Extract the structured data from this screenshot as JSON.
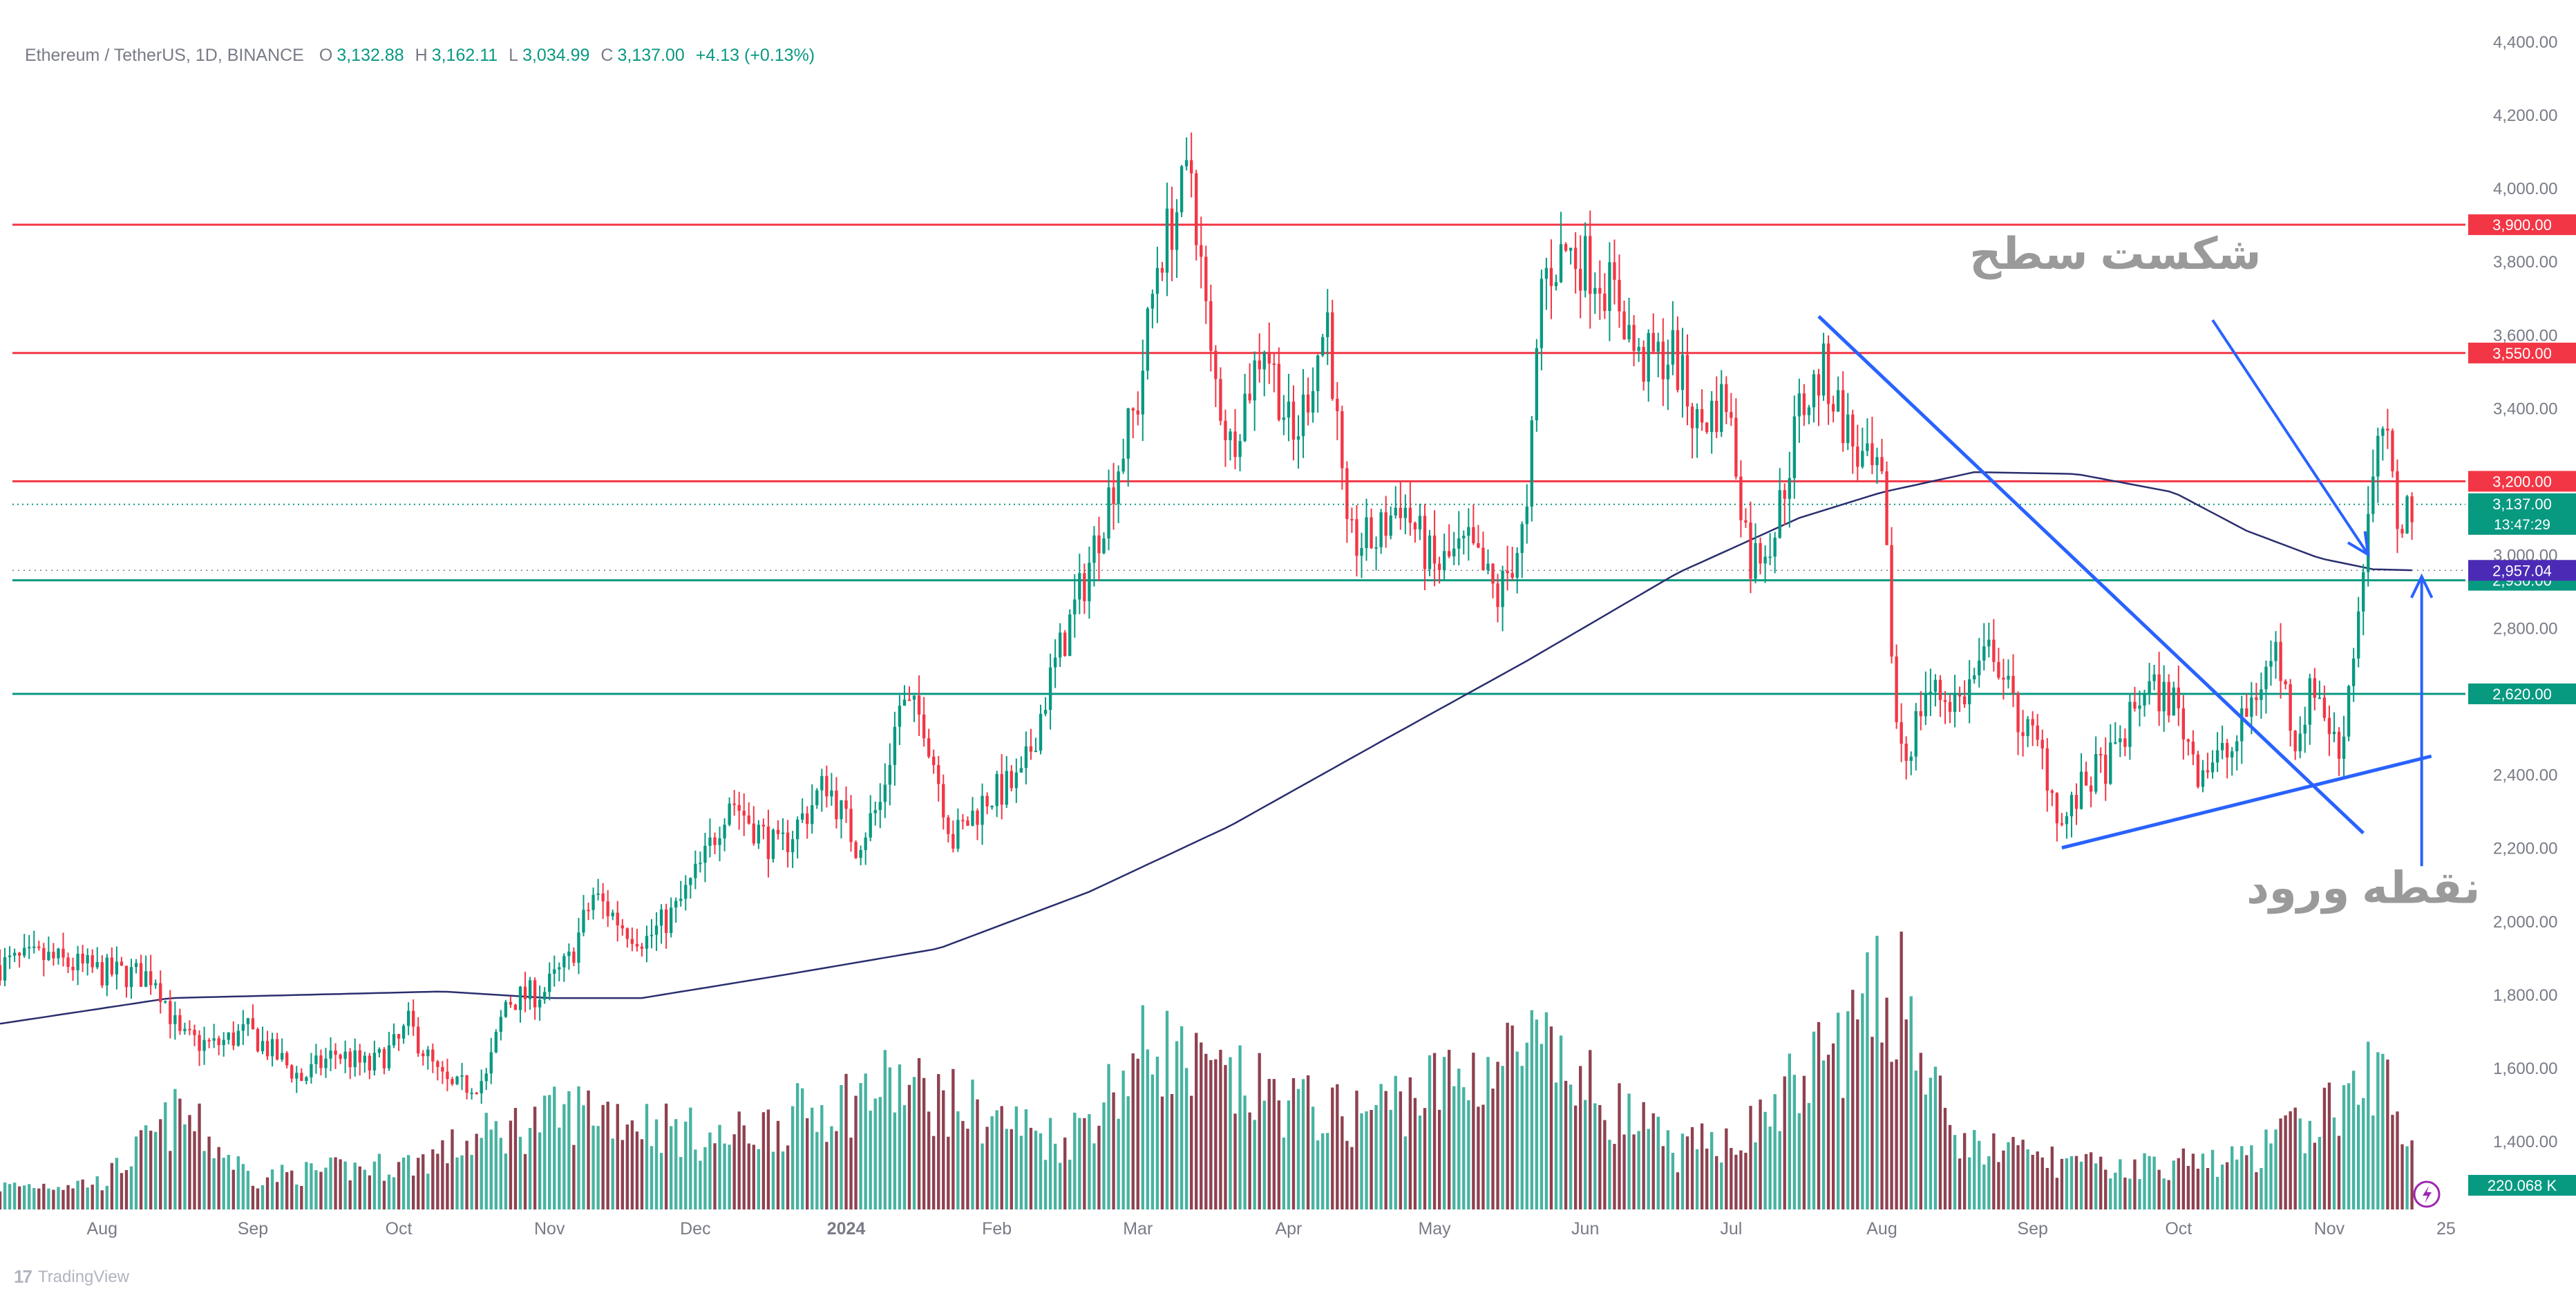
{
  "header": {
    "symbol": "Ethereum / TetherUS, 1D, BINANCE",
    "open_label": "O",
    "open": "3,132.88",
    "high_label": "H",
    "high": "3,162.11",
    "low_label": "L",
    "low": "3,034.99",
    "close_label": "C",
    "close": "3,137.00",
    "change": "+4.13 (+0.13%)"
  },
  "watermark": {
    "text": "TradingView",
    "icon": "tradingview-logo-icon"
  },
  "colors": {
    "up": "#089981",
    "down": "#f23645",
    "ma": "#2a2e6e",
    "trend": "#2962ff",
    "annotation": "#9a9a9a",
    "support": "#089981",
    "resistance": "#f23645",
    "ma_label": "#4b2bb5"
  },
  "chart_data": {
    "type": "candlestick",
    "y_ticks": [
      "4,400.00",
      "4,200.00",
      "4,000.00",
      "3,800.00",
      "3,600.00",
      "3,400.00",
      "3,000.00",
      "2,800.00",
      "2,400.00",
      "2,200.00",
      "2,000.00",
      "1,800.00",
      "1,600.00",
      "1,400.00"
    ],
    "ylim": [
      1300,
      4400
    ],
    "x_labels": [
      {
        "label": "Aug",
        "date": "2023-08-01"
      },
      {
        "label": "Sep",
        "date": "2023-09-01"
      },
      {
        "label": "Oct",
        "date": "2023-10-01"
      },
      {
        "label": "Nov",
        "date": "2023-11-01"
      },
      {
        "label": "Dec",
        "date": "2023-12-01"
      },
      {
        "label": "2024",
        "date": "2024-01-01"
      },
      {
        "label": "Feb",
        "date": "2024-02-01"
      },
      {
        "label": "Mar",
        "date": "2024-03-01"
      },
      {
        "label": "Apr",
        "date": "2024-04-01"
      },
      {
        "label": "May",
        "date": "2024-05-01"
      },
      {
        "label": "Jun",
        "date": "2024-06-01"
      },
      {
        "label": "Jul",
        "date": "2024-07-01"
      },
      {
        "label": "Aug",
        "date": "2024-08-01"
      },
      {
        "label": "Sep",
        "date": "2024-09-01"
      },
      {
        "label": "Oct",
        "date": "2024-10-01"
      },
      {
        "label": "Nov",
        "date": "2024-11-01"
      },
      {
        "label": "25",
        "date": "2024-11-25"
      }
    ],
    "xlim": [
      "2023-07-11",
      "2024-11-29"
    ],
    "price_path": [
      [
        "2023-07-11",
        1880
      ],
      [
        "2023-07-20",
        1900
      ],
      [
        "2023-08-01",
        1860
      ],
      [
        "2023-08-12",
        1850
      ],
      [
        "2023-08-17",
        1680
      ],
      [
        "2023-08-24",
        1660
      ],
      [
        "2023-08-31",
        1700
      ],
      [
        "2023-09-06",
        1630
      ],
      [
        "2023-09-11",
        1570
      ],
      [
        "2023-09-18",
        1640
      ],
      [
        "2023-09-25",
        1600
      ],
      [
        "2023-10-01",
        1670
      ],
      [
        "2023-10-03",
        1720
      ],
      [
        "2023-10-09",
        1580
      ],
      [
        "2023-10-12",
        1540
      ],
      [
        "2023-10-19",
        1570
      ],
      [
        "2023-10-23",
        1780
      ],
      [
        "2023-10-31",
        1810
      ],
      [
        "2023-11-05",
        1890
      ],
      [
        "2023-11-10",
        2070
      ],
      [
        "2023-11-16",
        1990
      ],
      [
        "2023-11-21",
        1950
      ],
      [
        "2023-11-27",
        2030
      ],
      [
        "2023-12-03",
        2170
      ],
      [
        "2023-12-08",
        2340
      ],
      [
        "2023-12-13",
        2260
      ],
      [
        "2023-12-18",
        2190
      ],
      [
        "2023-12-24",
        2300
      ],
      [
        "2023-12-28",
        2380
      ],
      [
        "2024-01-03",
        2210
      ],
      [
        "2024-01-08",
        2320
      ],
      [
        "2024-01-12",
        2590
      ],
      [
        "2024-01-17",
        2550
      ],
      [
        "2024-01-23",
        2220
      ],
      [
        "2024-01-30",
        2340
      ],
      [
        "2024-02-06",
        2380
      ],
      [
        "2024-02-12",
        2660
      ],
      [
        "2024-02-19",
        2930
      ],
      [
        "2024-02-26",
        3250
      ],
      [
        "2024-03-01",
        3420
      ],
      [
        "2024-03-05",
        3800
      ],
      [
        "2024-03-12",
        4050
      ],
      [
        "2024-03-16",
        3520
      ],
      [
        "2024-03-20",
        3300
      ],
      [
        "2024-03-27",
        3590
      ],
      [
        "2024-04-02",
        3300
      ],
      [
        "2024-04-09",
        3650
      ],
      [
        "2024-04-13",
        3030
      ],
      [
        "2024-04-19",
        3040
      ],
      [
        "2024-04-24",
        3150
      ],
      [
        "2024-05-01",
        2960
      ],
      [
        "2024-05-08",
        3020
      ],
      [
        "2024-05-14",
        2880
      ],
      [
        "2024-05-20",
        3090
      ],
      [
        "2024-05-23",
        3750
      ],
      [
        "2024-05-28",
        3830
      ],
      [
        "2024-06-03",
        3780
      ],
      [
        "2024-06-08",
        3690
      ],
      [
        "2024-06-12",
        3520
      ],
      [
        "2024-06-19",
        3550
      ],
      [
        "2024-06-24",
        3350
      ],
      [
        "2024-06-30",
        3430
      ],
      [
        "2024-07-05",
        2980
      ],
      [
        "2024-07-10",
        3070
      ],
      [
        "2024-07-15",
        3390
      ],
      [
        "2024-07-20",
        3500
      ],
      [
        "2024-07-27",
        3270
      ],
      [
        "2024-08-01",
        3180
      ],
      [
        "2024-08-04",
        2540
      ],
      [
        "2024-08-06",
        2450
      ],
      [
        "2024-08-10",
        2630
      ],
      [
        "2024-08-17",
        2600
      ],
      [
        "2024-08-24",
        2750
      ],
      [
        "2024-08-28",
        2580
      ],
      [
        "2024-09-03",
        2450
      ],
      [
        "2024-09-07",
        2260
      ],
      [
        "2024-09-12",
        2380
      ],
      [
        "2024-09-18",
        2450
      ],
      [
        "2024-09-24",
        2640
      ],
      [
        "2024-09-30",
        2600
      ],
      [
        "2024-10-05",
        2420
      ],
      [
        "2024-10-12",
        2460
      ],
      [
        "2024-10-16",
        2600
      ],
      [
        "2024-10-21",
        2740
      ],
      [
        "2024-10-25",
        2500
      ],
      [
        "2024-10-29",
        2650
      ],
      [
        "2024-11-03",
        2450
      ],
      [
        "2024-11-06",
        2740
      ],
      [
        "2024-11-09",
        3100
      ],
      [
        "2024-11-12",
        3350
      ],
      [
        "2024-11-15",
        3100
      ],
      [
        "2024-11-18",
        3137
      ]
    ],
    "ma_path": [
      [
        "2023-07-11",
        1720
      ],
      [
        "2023-08-15",
        1790
      ],
      [
        "2023-09-15",
        1800
      ],
      [
        "2023-10-10",
        1808
      ],
      [
        "2023-11-01",
        1790
      ],
      [
        "2023-11-20",
        1790
      ],
      [
        "2023-12-20",
        1855
      ],
      [
        "2024-01-20",
        1925
      ],
      [
        "2024-02-20",
        2080
      ],
      [
        "2024-03-20",
        2260
      ],
      [
        "2024-04-20",
        2490
      ],
      [
        "2024-05-20",
        2710
      ],
      [
        "2024-06-20",
        2950
      ],
      [
        "2024-07-15",
        3100
      ],
      [
        "2024-08-01",
        3170
      ],
      [
        "2024-08-20",
        3225
      ],
      [
        "2024-09-10",
        3220
      ],
      [
        "2024-09-30",
        3170
      ],
      [
        "2024-10-15",
        3065
      ],
      [
        "2024-10-30",
        2990
      ],
      [
        "2024-11-10",
        2960
      ],
      [
        "2024-11-19",
        2957
      ]
    ],
    "volume_path": [
      [
        "2023-07-11",
        0.1
      ],
      [
        "2023-08-01",
        0.12
      ],
      [
        "2023-08-17",
        0.42
      ],
      [
        "2023-09-01",
        0.14
      ],
      [
        "2023-10-03",
        0.2
      ],
      [
        "2023-10-23",
        0.35
      ],
      [
        "2023-11-10",
        0.45
      ],
      [
        "2023-12-06",
        0.3
      ],
      [
        "2024-01-11",
        0.55
      ],
      [
        "2024-02-15",
        0.3
      ],
      [
        "2024-03-05",
        0.75
      ],
      [
        "2024-03-12",
        0.6
      ],
      [
        "2024-04-13",
        0.4
      ],
      [
        "2024-05-21",
        0.7
      ],
      [
        "2024-06-20",
        0.25
      ],
      [
        "2024-07-05",
        0.35
      ],
      [
        "2024-08-05",
        1.0
      ],
      [
        "2024-08-15",
        0.3
      ],
      [
        "2024-09-15",
        0.18
      ],
      [
        "2024-10-15",
        0.22
      ],
      [
        "2024-11-06",
        0.5
      ],
      [
        "2024-11-12",
        0.62
      ],
      [
        "2024-11-18",
        0.25
      ]
    ],
    "horizontal_levels": [
      {
        "price": 3900,
        "label": "3,900.00",
        "kind": "resistance"
      },
      {
        "price": 3550,
        "label": "3,550.00",
        "kind": "resistance"
      },
      {
        "price": 3200,
        "label": "3,200.00",
        "kind": "resistance"
      },
      {
        "price": 2930,
        "label": "2,930.00",
        "kind": "support"
      },
      {
        "price": 2620,
        "label": "2,620.00",
        "kind": "support"
      }
    ],
    "price_labels": [
      {
        "label": "3,137.00",
        "sub": "13:47:29",
        "price": 3137,
        "kind": "last"
      },
      {
        "label": "2,957.04",
        "price": 2957,
        "kind": "ma"
      }
    ],
    "volume_label": "220.068 K",
    "trendlines": [
      {
        "from": [
          "2024-07-19",
          3650
        ],
        "to": [
          "2024-11-08",
          2240
        ]
      },
      {
        "from": [
          "2024-09-07",
          2200
        ],
        "to": [
          "2024-11-22",
          2450
        ]
      }
    ],
    "arrows": [
      {
        "from": [
          "2024-10-08",
          3640
        ],
        "to": [
          "2024-11-09",
          3000
        ]
      },
      {
        "from": [
          "2024-11-20",
          2150
        ],
        "to": [
          "2024-11-20",
          2940
        ]
      }
    ],
    "annotations": [
      {
        "text": "شکست سطح",
        "at": [
          "2024-09-18",
          3780
        ]
      },
      {
        "text": "نقطه ورود",
        "at": [
          "2024-11-08",
          2050
        ]
      }
    ]
  }
}
